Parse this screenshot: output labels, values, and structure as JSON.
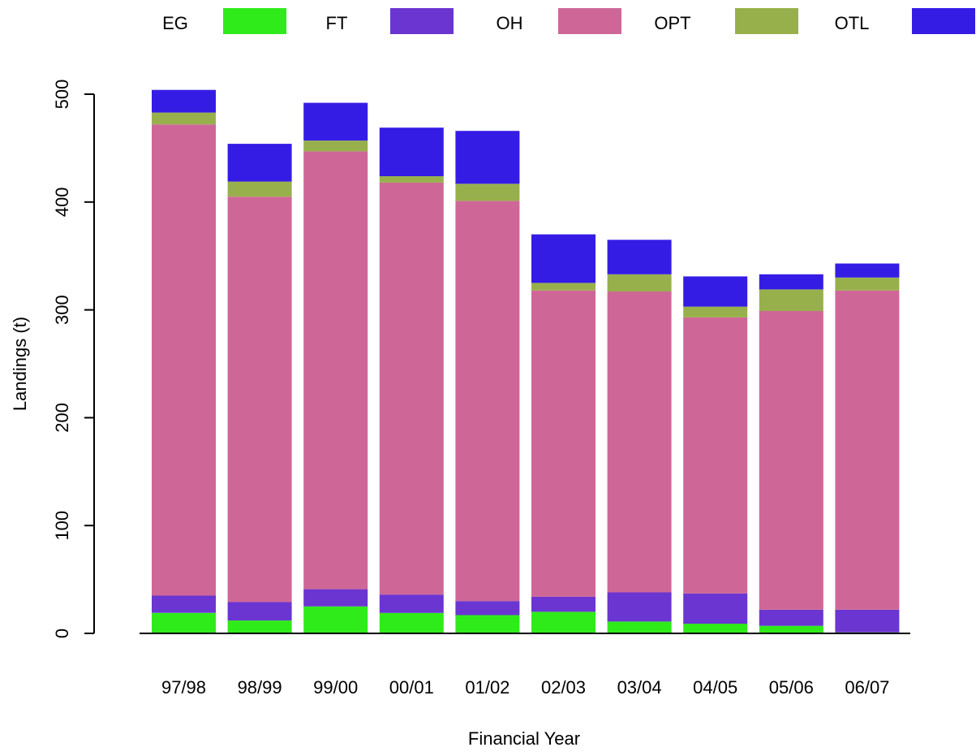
{
  "chart_data": {
    "type": "bar",
    "stacked": true,
    "xlabel": "Financial Year",
    "ylabel": "Landings (t)",
    "ylim": [
      0,
      500
    ],
    "yticks": [
      "0",
      "100",
      "200",
      "300",
      "400",
      "500"
    ],
    "legend_position": "top",
    "categories": [
      "97/98",
      "98/99",
      "99/00",
      "00/01",
      "01/02",
      "02/03",
      "03/04",
      "04/05",
      "05/06",
      "06/07"
    ],
    "series": [
      {
        "name": "EG",
        "color": "#2FEB1A",
        "values": [
          19,
          12,
          25,
          19,
          17,
          20,
          11,
          9,
          7,
          1
        ]
      },
      {
        "name": "FT",
        "color": "#6A35D1",
        "values": [
          16,
          17,
          16,
          17,
          13,
          14,
          27,
          28,
          15,
          21
        ]
      },
      {
        "name": "OH",
        "color": "#CE6797",
        "values": [
          437,
          376,
          406,
          382,
          371,
          284,
          279,
          256,
          277,
          296
        ]
      },
      {
        "name": "OPT",
        "color": "#98B04C",
        "values": [
          11,
          14,
          10,
          6,
          16,
          7,
          16,
          10,
          20,
          12
        ]
      },
      {
        "name": "OTL",
        "color": "#351CE5",
        "values": [
          21,
          35,
          35,
          45,
          49,
          45,
          32,
          28,
          14,
          13
        ]
      }
    ]
  }
}
